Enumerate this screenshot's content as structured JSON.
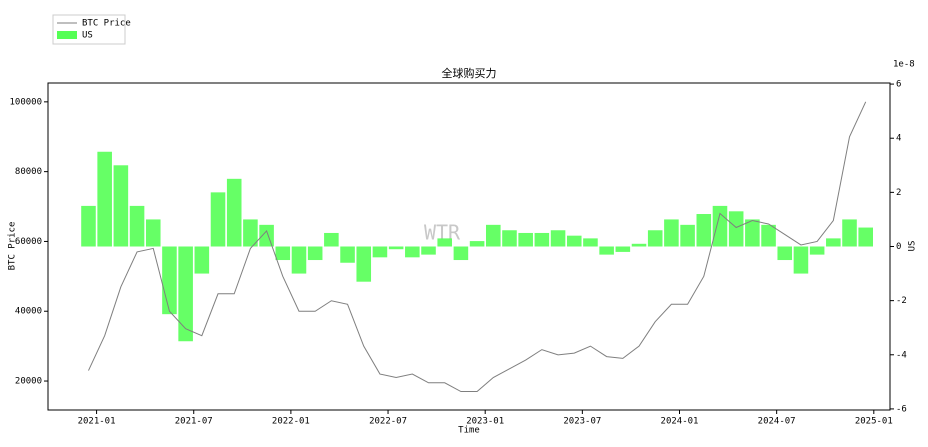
{
  "chart_data": {
    "type": "combo",
    "title": "全球购买力",
    "x_label": "Time",
    "y_label": "BTC Price",
    "y2_label": "US",
    "y2_offset_label": "1e-8",
    "watermark": "WTR",
    "legend": "upper-left",
    "x": [
      "2020-12",
      "2021-01",
      "2021-02",
      "2021-03",
      "2021-04",
      "2021-05",
      "2021-06",
      "2021-07",
      "2021-08",
      "2021-09",
      "2021-10",
      "2021-11",
      "2021-12",
      "2022-01",
      "2022-02",
      "2022-03",
      "2022-04",
      "2022-05",
      "2022-06",
      "2022-07",
      "2022-08",
      "2022-09",
      "2022-10",
      "2022-11",
      "2022-12",
      "2023-01",
      "2023-02",
      "2023-03",
      "2023-04",
      "2023-05",
      "2023-06",
      "2023-07",
      "2023-08",
      "2023-09",
      "2023-10",
      "2023-11",
      "2023-12",
      "2024-01",
      "2024-02",
      "2024-03",
      "2024-04",
      "2024-05",
      "2024-06",
      "2024-07",
      "2024-08",
      "2024-09",
      "2024-10",
      "2024-11",
      "2024-12"
    ],
    "series": [
      {
        "name": "BTC Price",
        "type": "line",
        "color": "#7f7f7f",
        "values": [
          23000,
          33000,
          47000,
          57000,
          58000,
          40000,
          35000,
          33000,
          45000,
          45000,
          58000,
          63000,
          50000,
          40000,
          40000,
          43000,
          42000,
          30000,
          22000,
          21000,
          22000,
          19500,
          19500,
          17000,
          17000,
          21000,
          23500,
          26000,
          29000,
          27500,
          28000,
          30000,
          27000,
          26500,
          30000,
          37000,
          42000,
          42000,
          50000,
          68000,
          64000,
          66000,
          65000,
          62000,
          59000,
          60000,
          66000,
          90000,
          100000
        ]
      },
      {
        "name": "US",
        "type": "bar",
        "axis": "y2",
        "color": "#55ff55",
        "values": [
          1.5,
          3.5,
          3.0,
          1.5,
          1.0,
          -2.5,
          -3.5,
          -1.0,
          2.0,
          2.5,
          1.0,
          0.8,
          -0.5,
          -1.0,
          -0.5,
          0.5,
          -0.6,
          -1.3,
          -0.4,
          -0.1,
          -0.4,
          -0.3,
          0.3,
          -0.5,
          0.2,
          0.8,
          0.6,
          0.5,
          0.5,
          0.6,
          0.4,
          0.3,
          -0.3,
          -0.2,
          0.1,
          0.6,
          1.0,
          0.8,
          1.2,
          1.5,
          1.3,
          1.0,
          0.8,
          -0.5,
          -1.0,
          -0.3,
          0.3,
          1.0,
          0.7
        ]
      }
    ],
    "xlim": [
      "2020-10",
      "2025-02"
    ],
    "xticks": [
      "2021-01",
      "2021-07",
      "2022-01",
      "2022-07",
      "2023-01",
      "2023-07",
      "2024-01",
      "2024-07",
      "2025-01"
    ],
    "ylim": [
      11700,
      105400
    ],
    "yticks": [
      20000,
      40000,
      60000,
      80000,
      100000
    ],
    "y2lim": [
      -6.04,
      6.04
    ],
    "y2ticks": [
      -6,
      -4,
      -2,
      0,
      2,
      4,
      6
    ]
  }
}
